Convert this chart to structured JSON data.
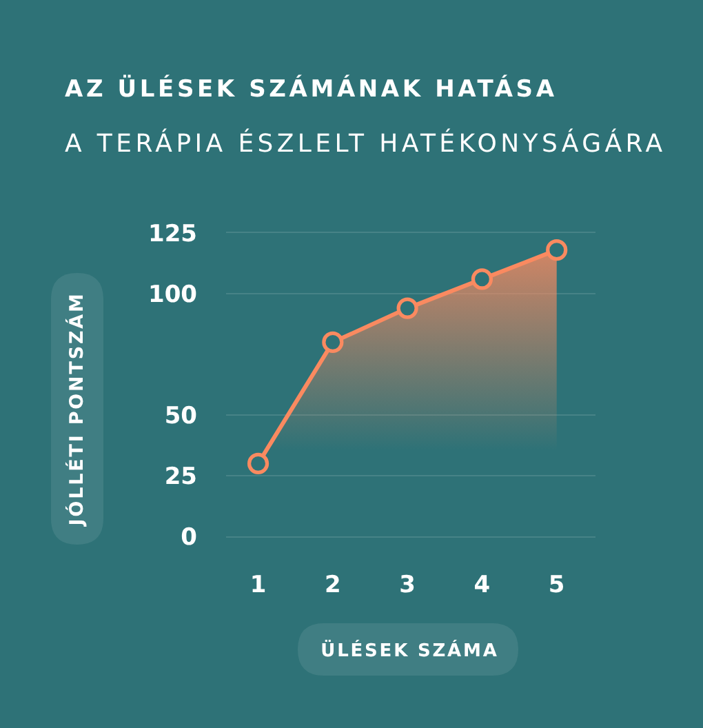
{
  "chart_data": {
    "type": "area",
    "title": "AZ ÜLÉSEK SZÁMÁNAK HATÁSA",
    "subtitle": "A TERÁPIA ÉSZLELT HATÉKONYSÁGÁRA",
    "xlabel": "ÜLÉSEK SZÁMA",
    "ylabel": "JÓLLÉTI PONTSZÁM",
    "categories": [
      "1",
      "2",
      "3",
      "4",
      "5"
    ],
    "values": [
      30,
      80,
      94,
      106,
      118
    ],
    "color": "#fa8a60",
    "ylim": [
      0,
      125
    ],
    "yticks": [
      0,
      25,
      50,
      100,
      125
    ],
    "grid": "y",
    "marker": "circle",
    "line_style": "solid"
  }
}
